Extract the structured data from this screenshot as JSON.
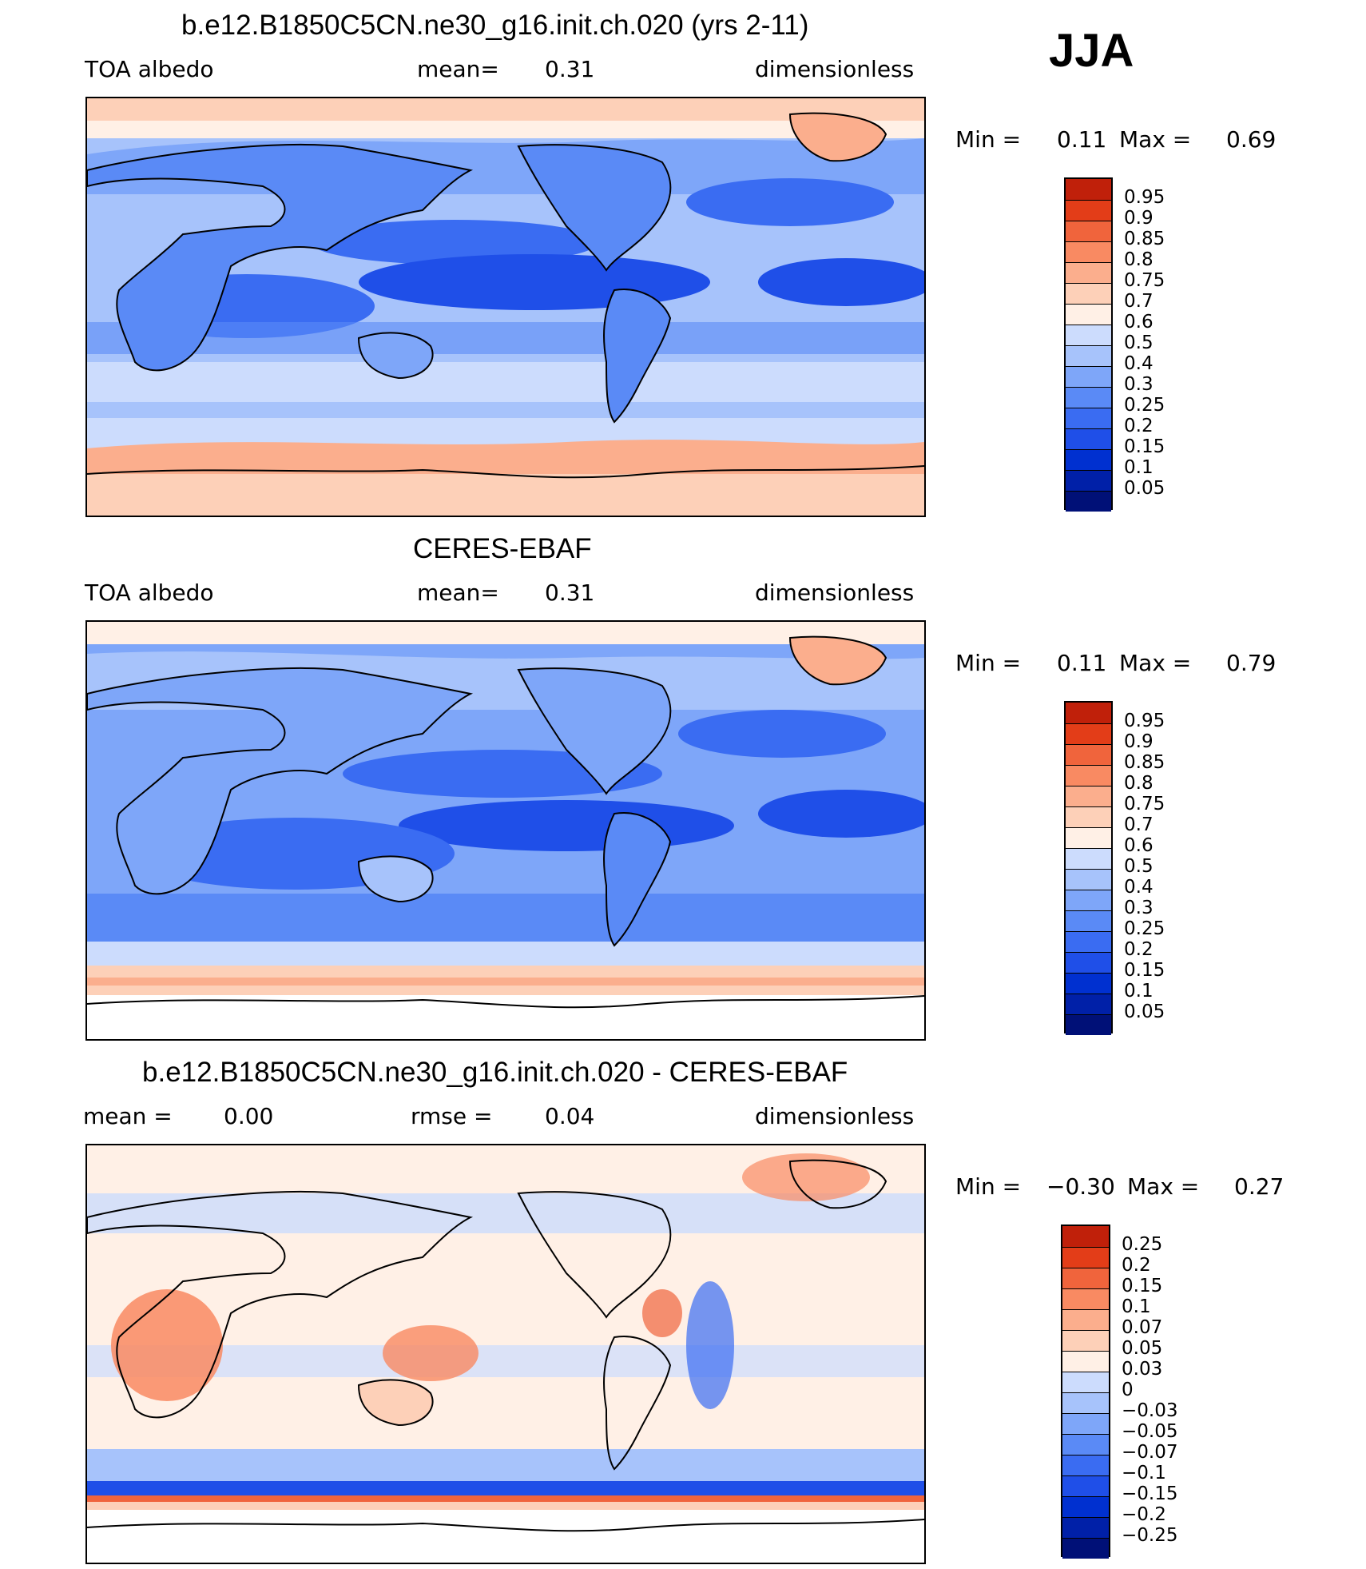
{
  "season": "JJA",
  "colors": {
    "coast": "#000000",
    "seq": [
      "#001077",
      "#0020a8",
      "#0030d0",
      "#1f4fe8",
      "#3a6cf2",
      "#5a8af6",
      "#7ea6f9",
      "#a7c3fb",
      "#ccdcfd",
      "#fff0e6",
      "#fdd0b8",
      "#fbae8d",
      "#f98a62",
      "#f0643c",
      "#e33d18",
      "#c0200a",
      "#8f0000"
    ],
    "diff": [
      "#001077",
      "#0020a8",
      "#0030d0",
      "#1f4fe8",
      "#3a6cf2",
      "#5a8af6",
      "#7ea6f9",
      "#a7c3fb",
      "#ccdcfd",
      "#fff0e6",
      "#fdd0b8",
      "#fbae8d",
      "#f98a62",
      "#f0643c",
      "#e33d18",
      "#c0200a",
      "#8f0000"
    ]
  },
  "panels": [
    {
      "id": "model",
      "title": "b.e12.B1850C5CN.ne30_g16.init.ch.020 (yrs 2-11)",
      "left_text": "TOA albedo",
      "center_label": "mean=",
      "center_value": "0.31",
      "right_text": "dimensionless",
      "min_label": "Min =",
      "min_value": "0.11",
      "max_label": "Max =",
      "max_value": "0.69",
      "colorbar_labels": [
        "0.95",
        "0.9",
        "0.85",
        "0.8",
        "0.75",
        "0.7",
        "0.6",
        "0.5",
        "0.4",
        "0.3",
        "0.25",
        "0.2",
        "0.15",
        "0.1",
        "0.05"
      ]
    },
    {
      "id": "obs",
      "title": "CERES-EBAF",
      "left_text": "TOA albedo",
      "center_label": "mean=",
      "center_value": "0.31",
      "right_text": "dimensionless",
      "min_label": "Min =",
      "min_value": "0.11",
      "max_label": "Max =",
      "max_value": "0.79",
      "colorbar_labels": [
        "0.95",
        "0.9",
        "0.85",
        "0.8",
        "0.75",
        "0.7",
        "0.6",
        "0.5",
        "0.4",
        "0.3",
        "0.25",
        "0.2",
        "0.15",
        "0.1",
        "0.05"
      ]
    },
    {
      "id": "diff",
      "title": "b.e12.B1850C5CN.ne30_g16.init.ch.020 - CERES-EBAF",
      "left_label": "mean =",
      "left_value": "0.00",
      "center_label": "rmse =",
      "center_value": "0.04",
      "right_text": "dimensionless",
      "min_label": "Min =",
      "min_value": "−0.30",
      "max_label": "Max =",
      "max_value": "0.27",
      "colorbar_labels": [
        "0.25",
        "0.2",
        "0.15",
        "0.1",
        "0.07",
        "0.05",
        "0.03",
        "0",
        "−0.03",
        "−0.05",
        "−0.07",
        "−0.1",
        "−0.15",
        "−0.2",
        "−0.25"
      ]
    }
  ]
}
